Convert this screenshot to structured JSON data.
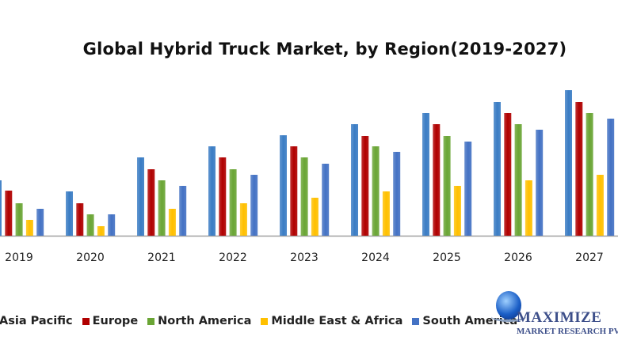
{
  "chart_data": {
    "type": "bar",
    "title": "Global Hybrid Truck Market, by Region(2019-2027)",
    "xlabel": "",
    "ylabel": "",
    "ylim": [
      0,
      200
    ],
    "grid": false,
    "legend_position": "bottom",
    "categories": [
      "2019",
      "2020",
      "2021",
      "2022",
      "2023",
      "2024",
      "2025",
      "2026",
      "2027"
    ],
    "series": [
      {
        "name": "Asia Pacific",
        "color": "#3a7cc4",
        "values": [
          70,
          56,
          99,
          113,
          127,
          141,
          155,
          169,
          184
        ]
      },
      {
        "name": "Europe",
        "color": "#b00000",
        "values": [
          57,
          41,
          84,
          99,
          113,
          126,
          141,
          155,
          169
        ]
      },
      {
        "name": "North America",
        "color": "#6aa535",
        "values": [
          41,
          27,
          70,
          84,
          99,
          113,
          126,
          141,
          155
        ]
      },
      {
        "name": "Middle East & Africa",
        "color": "#ffc000",
        "values": [
          20,
          12,
          34,
          41,
          48,
          56,
          63,
          70,
          77
        ]
      },
      {
        "name": "South America",
        "color": "#4472c4",
        "values": [
          34,
          27,
          63,
          77,
          91,
          106,
          119,
          134,
          148
        ]
      }
    ]
  },
  "logo": {
    "name": "MAXIMIZE",
    "sub": "MARKET RESEARCH PVT. LTD."
  }
}
